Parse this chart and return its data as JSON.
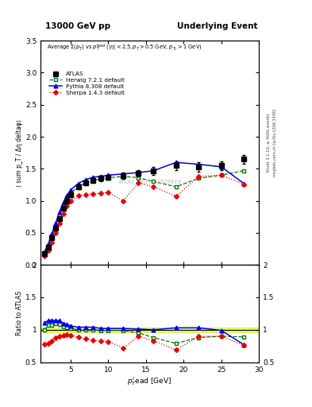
{
  "title_left": "13000 GeV pp",
  "title_right": "Underlying Event",
  "ylabel_main": "⟨ sum p_T / Δη deltaφ⟩",
  "ylabel_ratio": "Ratio to ATLAS",
  "xlabel": "p_T^{l}ead [GeV]",
  "right_label": "Rivet 3.1.10, ≥ 400k events",
  "right_label2": "mcplots.cern.ch [arXiv:1306.3436]",
  "watermark": "ATLAS_2017_I1509919",
  "ylim_main": [
    0,
    3.5
  ],
  "ylim_ratio": [
    0.5,
    2.0
  ],
  "xlim": [
    1,
    30
  ],
  "atlas_x": [
    1.5,
    2.0,
    2.5,
    3.0,
    3.5,
    4.0,
    4.5,
    5.0,
    6.0,
    7.0,
    8.0,
    9.0,
    10.0,
    12.0,
    14.0,
    16.0,
    19.0,
    22.0,
    25.0,
    28.0
  ],
  "atlas_y": [
    0.18,
    0.28,
    0.42,
    0.57,
    0.72,
    0.88,
    1.0,
    1.1,
    1.22,
    1.28,
    1.32,
    1.35,
    1.37,
    1.39,
    1.43,
    1.47,
    1.55,
    1.53,
    1.55,
    1.65
  ],
  "atlas_yerr": [
    0.02,
    0.02,
    0.02,
    0.03,
    0.03,
    0.04,
    0.04,
    0.04,
    0.04,
    0.04,
    0.04,
    0.04,
    0.04,
    0.05,
    0.05,
    0.06,
    0.07,
    0.07,
    0.07,
    0.07
  ],
  "herwig_x": [
    1.5,
    2.0,
    2.5,
    3.0,
    3.5,
    4.0,
    4.5,
    5.0,
    6.0,
    7.0,
    8.0,
    9.0,
    10.0,
    12.0,
    14.0,
    16.0,
    19.0,
    22.0,
    25.0,
    28.0
  ],
  "herwig_y": [
    0.18,
    0.3,
    0.45,
    0.62,
    0.78,
    0.92,
    1.04,
    1.12,
    1.22,
    1.28,
    1.32,
    1.34,
    1.36,
    1.38,
    1.36,
    1.3,
    1.22,
    1.35,
    1.4,
    1.47
  ],
  "pythia_x": [
    1.5,
    2.0,
    2.5,
    3.0,
    3.5,
    4.0,
    4.5,
    5.0,
    6.0,
    7.0,
    8.0,
    9.0,
    10.0,
    12.0,
    14.0,
    16.0,
    19.0,
    22.0,
    25.0,
    28.0
  ],
  "pythia_y": [
    0.2,
    0.32,
    0.48,
    0.65,
    0.82,
    0.97,
    1.08,
    1.17,
    1.27,
    1.33,
    1.37,
    1.38,
    1.4,
    1.42,
    1.44,
    1.47,
    1.6,
    1.57,
    1.53,
    1.27
  ],
  "sherpa_x": [
    1.5,
    2.0,
    2.5,
    3.0,
    3.5,
    4.0,
    4.5,
    5.0,
    6.0,
    7.0,
    8.0,
    9.0,
    10.0,
    12.0,
    14.0,
    16.0,
    19.0,
    22.0,
    25.0,
    28.0
  ],
  "sherpa_y": [
    0.14,
    0.22,
    0.35,
    0.5,
    0.65,
    0.8,
    0.92,
    1.0,
    1.08,
    1.1,
    1.11,
    1.12,
    1.13,
    1.0,
    1.28,
    1.22,
    1.07,
    1.38,
    1.4,
    1.26
  ],
  "herwig_ratio": [
    1.0,
    1.07,
    1.07,
    1.09,
    1.08,
    1.05,
    1.04,
    1.02,
    1.0,
    1.0,
    1.0,
    0.99,
    0.99,
    0.99,
    0.95,
    0.88,
    0.79,
    0.88,
    0.9,
    0.89
  ],
  "pythia_ratio": [
    1.11,
    1.14,
    1.14,
    1.14,
    1.14,
    1.1,
    1.08,
    1.06,
    1.04,
    1.04,
    1.04,
    1.02,
    1.02,
    1.02,
    1.01,
    1.0,
    1.03,
    1.03,
    0.99,
    0.77
  ],
  "sherpa_ratio": [
    0.78,
    0.79,
    0.83,
    0.88,
    0.9,
    0.91,
    0.92,
    0.91,
    0.89,
    0.86,
    0.84,
    0.83,
    0.82,
    0.72,
    0.9,
    0.83,
    0.69,
    0.9,
    0.9,
    0.76
  ],
  "atlas_color": "#000000",
  "herwig_color": "#007700",
  "pythia_color": "#0000ee",
  "sherpa_color": "#ee0000",
  "band_color": "#ccee00",
  "band_alpha": 0.5,
  "band_low": 0.96,
  "band_high": 1.04
}
